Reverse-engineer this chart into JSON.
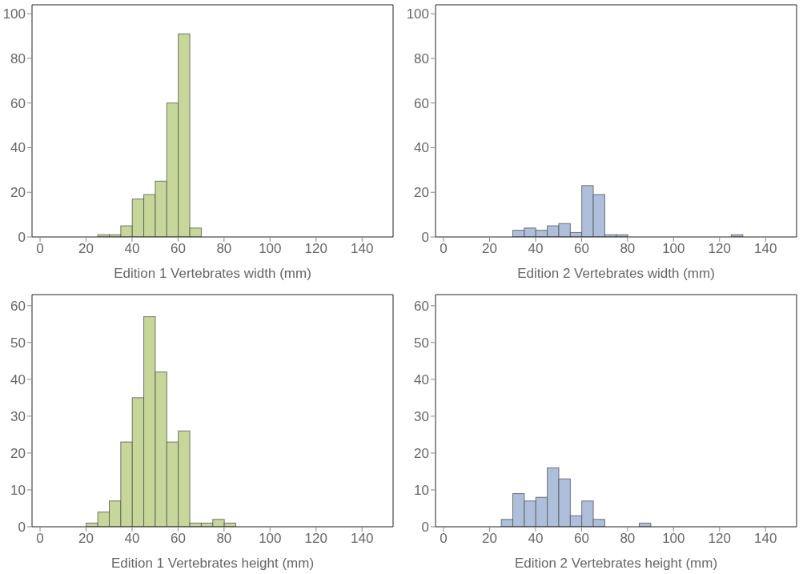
{
  "chart_data": [
    {
      "type": "histogram",
      "xlabel": "Edition 1 Vertebrates width (mm)",
      "bins": [
        25,
        30,
        35,
        40,
        45,
        50,
        55,
        60,
        65,
        70
      ],
      "values": [
        1,
        1,
        5,
        17,
        19,
        25,
        60,
        91,
        4
      ],
      "color": "#c6d799",
      "xlim": [
        -3.5,
        153.5
      ],
      "xticks": [
        0,
        20,
        40,
        60,
        80,
        100,
        120,
        140
      ],
      "ylim": [
        0,
        104
      ],
      "yticks": [
        0,
        20,
        40,
        60,
        80,
        100
      ]
    },
    {
      "type": "histogram",
      "xlabel": "Edition 2 Vertebrates width (mm)",
      "bins": [
        30,
        35,
        40,
        45,
        50,
        55,
        60,
        65,
        70,
        75,
        80,
        85,
        90,
        95,
        100,
        105,
        110,
        115,
        120,
        125,
        130
      ],
      "values": [
        3,
        4,
        3,
        5,
        6,
        2,
        23,
        19,
        1,
        1,
        0,
        0,
        0,
        0,
        0,
        0,
        0,
        0,
        0,
        1
      ],
      "color": "#adbfdb",
      "xlim": [
        -3.5,
        153.5
      ],
      "xticks": [
        0,
        20,
        40,
        60,
        80,
        100,
        120,
        140
      ],
      "ylim": [
        0,
        104
      ],
      "yticks": [
        0,
        20,
        40,
        60,
        80,
        100
      ]
    },
    {
      "type": "histogram",
      "xlabel": "Edition 1 Vertebrates height (mm)",
      "bins": [
        20,
        25,
        30,
        35,
        40,
        45,
        50,
        55,
        60,
        65,
        70,
        75,
        80,
        85
      ],
      "values": [
        1,
        4,
        7,
        23,
        35,
        57,
        42,
        23,
        26,
        1,
        1,
        2,
        1
      ],
      "color": "#c6d799",
      "xlim": [
        -3.5,
        153.5
      ],
      "xticks": [
        0,
        20,
        40,
        60,
        80,
        100,
        120,
        140
      ],
      "ylim": [
        0,
        63
      ],
      "yticks": [
        0,
        10,
        20,
        30,
        40,
        50,
        60
      ]
    },
    {
      "type": "histogram",
      "xlabel": "Edition 2 Vertebrates height (mm)",
      "bins": [
        25,
        30,
        35,
        40,
        45,
        50,
        55,
        60,
        65,
        70,
        75,
        80,
        85,
        90
      ],
      "values": [
        2,
        9,
        7,
        8,
        16,
        13,
        3,
        7,
        2,
        0,
        0,
        0,
        1
      ],
      "color": "#adbfdb",
      "xlim": [
        -3.5,
        153.5
      ],
      "xticks": [
        0,
        20,
        40,
        60,
        80,
        100,
        120,
        140
      ],
      "ylim": [
        0,
        63
      ],
      "yticks": [
        0,
        10,
        20,
        30,
        40,
        50,
        60
      ]
    }
  ]
}
